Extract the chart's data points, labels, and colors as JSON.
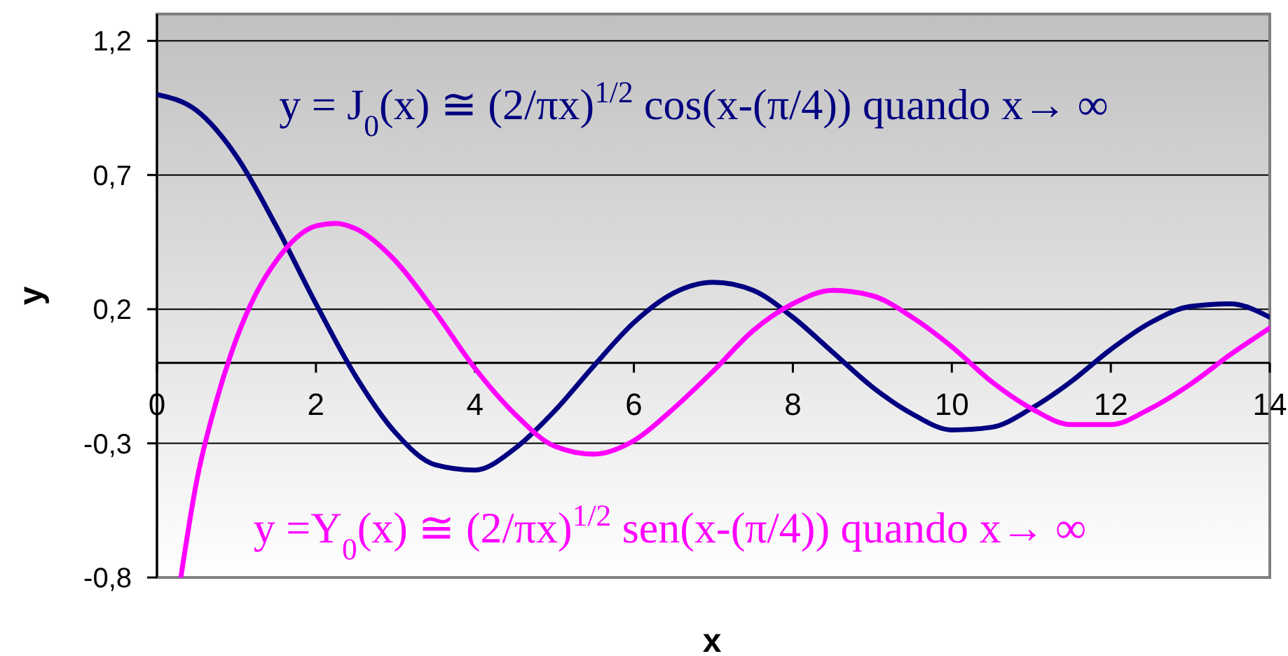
{
  "chart_data": {
    "type": "line",
    "xlabel": "x",
    "ylabel": "y",
    "xlim": [
      0,
      14
    ],
    "ylim": [
      -0.8,
      1.3
    ],
    "xticks": [
      0,
      2,
      4,
      6,
      8,
      10,
      12,
      14
    ],
    "yticks": [
      {
        "value": -0.8,
        "label": "-0,8"
      },
      {
        "value": -0.3,
        "label": "-0,3"
      },
      {
        "value": 0.2,
        "label": "0,2"
      },
      {
        "value": 0.7,
        "label": "0,7"
      },
      {
        "value": 1.2,
        "label": "1,2"
      }
    ],
    "grid": "y",
    "series": [
      {
        "name": "y = J$_{0}$(x) ≅ (2/πx)$^{1/2}$ cos(x-(π/4)) quando x→ ∞",
        "color": "#000080",
        "x": [
          0,
          0.5,
          1,
          1.5,
          2,
          2.5,
          3,
          3.5,
          4,
          4.5,
          5,
          5.5,
          6,
          6.5,
          7,
          7.5,
          8,
          8.5,
          9,
          9.5,
          10,
          10.5,
          11,
          11.5,
          12,
          12.5,
          13,
          13.5,
          14
        ],
        "values": [
          1.0,
          0.94,
          0.77,
          0.51,
          0.22,
          -0.05,
          -0.26,
          -0.38,
          -0.4,
          -0.32,
          -0.18,
          -0.01,
          0.15,
          0.26,
          0.3,
          0.27,
          0.17,
          0.04,
          -0.09,
          -0.19,
          -0.25,
          -0.24,
          -0.17,
          -0.07,
          0.05,
          0.15,
          0.21,
          0.22,
          0.17
        ]
      },
      {
        "name": "y =Y$_{0}$(x) ≅ (2/πx)$^{1/2}$ sen(x-(π/4)) quando x→ ∞",
        "color": "#ff00ff",
        "x": [
          0.3,
          0.5,
          0.75,
          1,
          1.25,
          1.5,
          2,
          2.25,
          2.5,
          3,
          3.5,
          4,
          4.5,
          5,
          5.5,
          6,
          6.5,
          7,
          7.5,
          8,
          8.5,
          9,
          9.5,
          10,
          10.5,
          11,
          11.5,
          12,
          12.5,
          13,
          13.5,
          14
        ],
        "values": [
          -0.8,
          -0.44,
          -0.14,
          0.09,
          0.26,
          0.38,
          0.51,
          0.52,
          0.5,
          0.38,
          0.19,
          -0.02,
          -0.19,
          -0.31,
          -0.34,
          -0.29,
          -0.17,
          -0.03,
          0.12,
          0.22,
          0.27,
          0.25,
          0.17,
          0.06,
          -0.07,
          -0.17,
          -0.23,
          -0.23,
          -0.17,
          -0.08,
          0.03,
          0.13
        ]
      }
    ]
  }
}
